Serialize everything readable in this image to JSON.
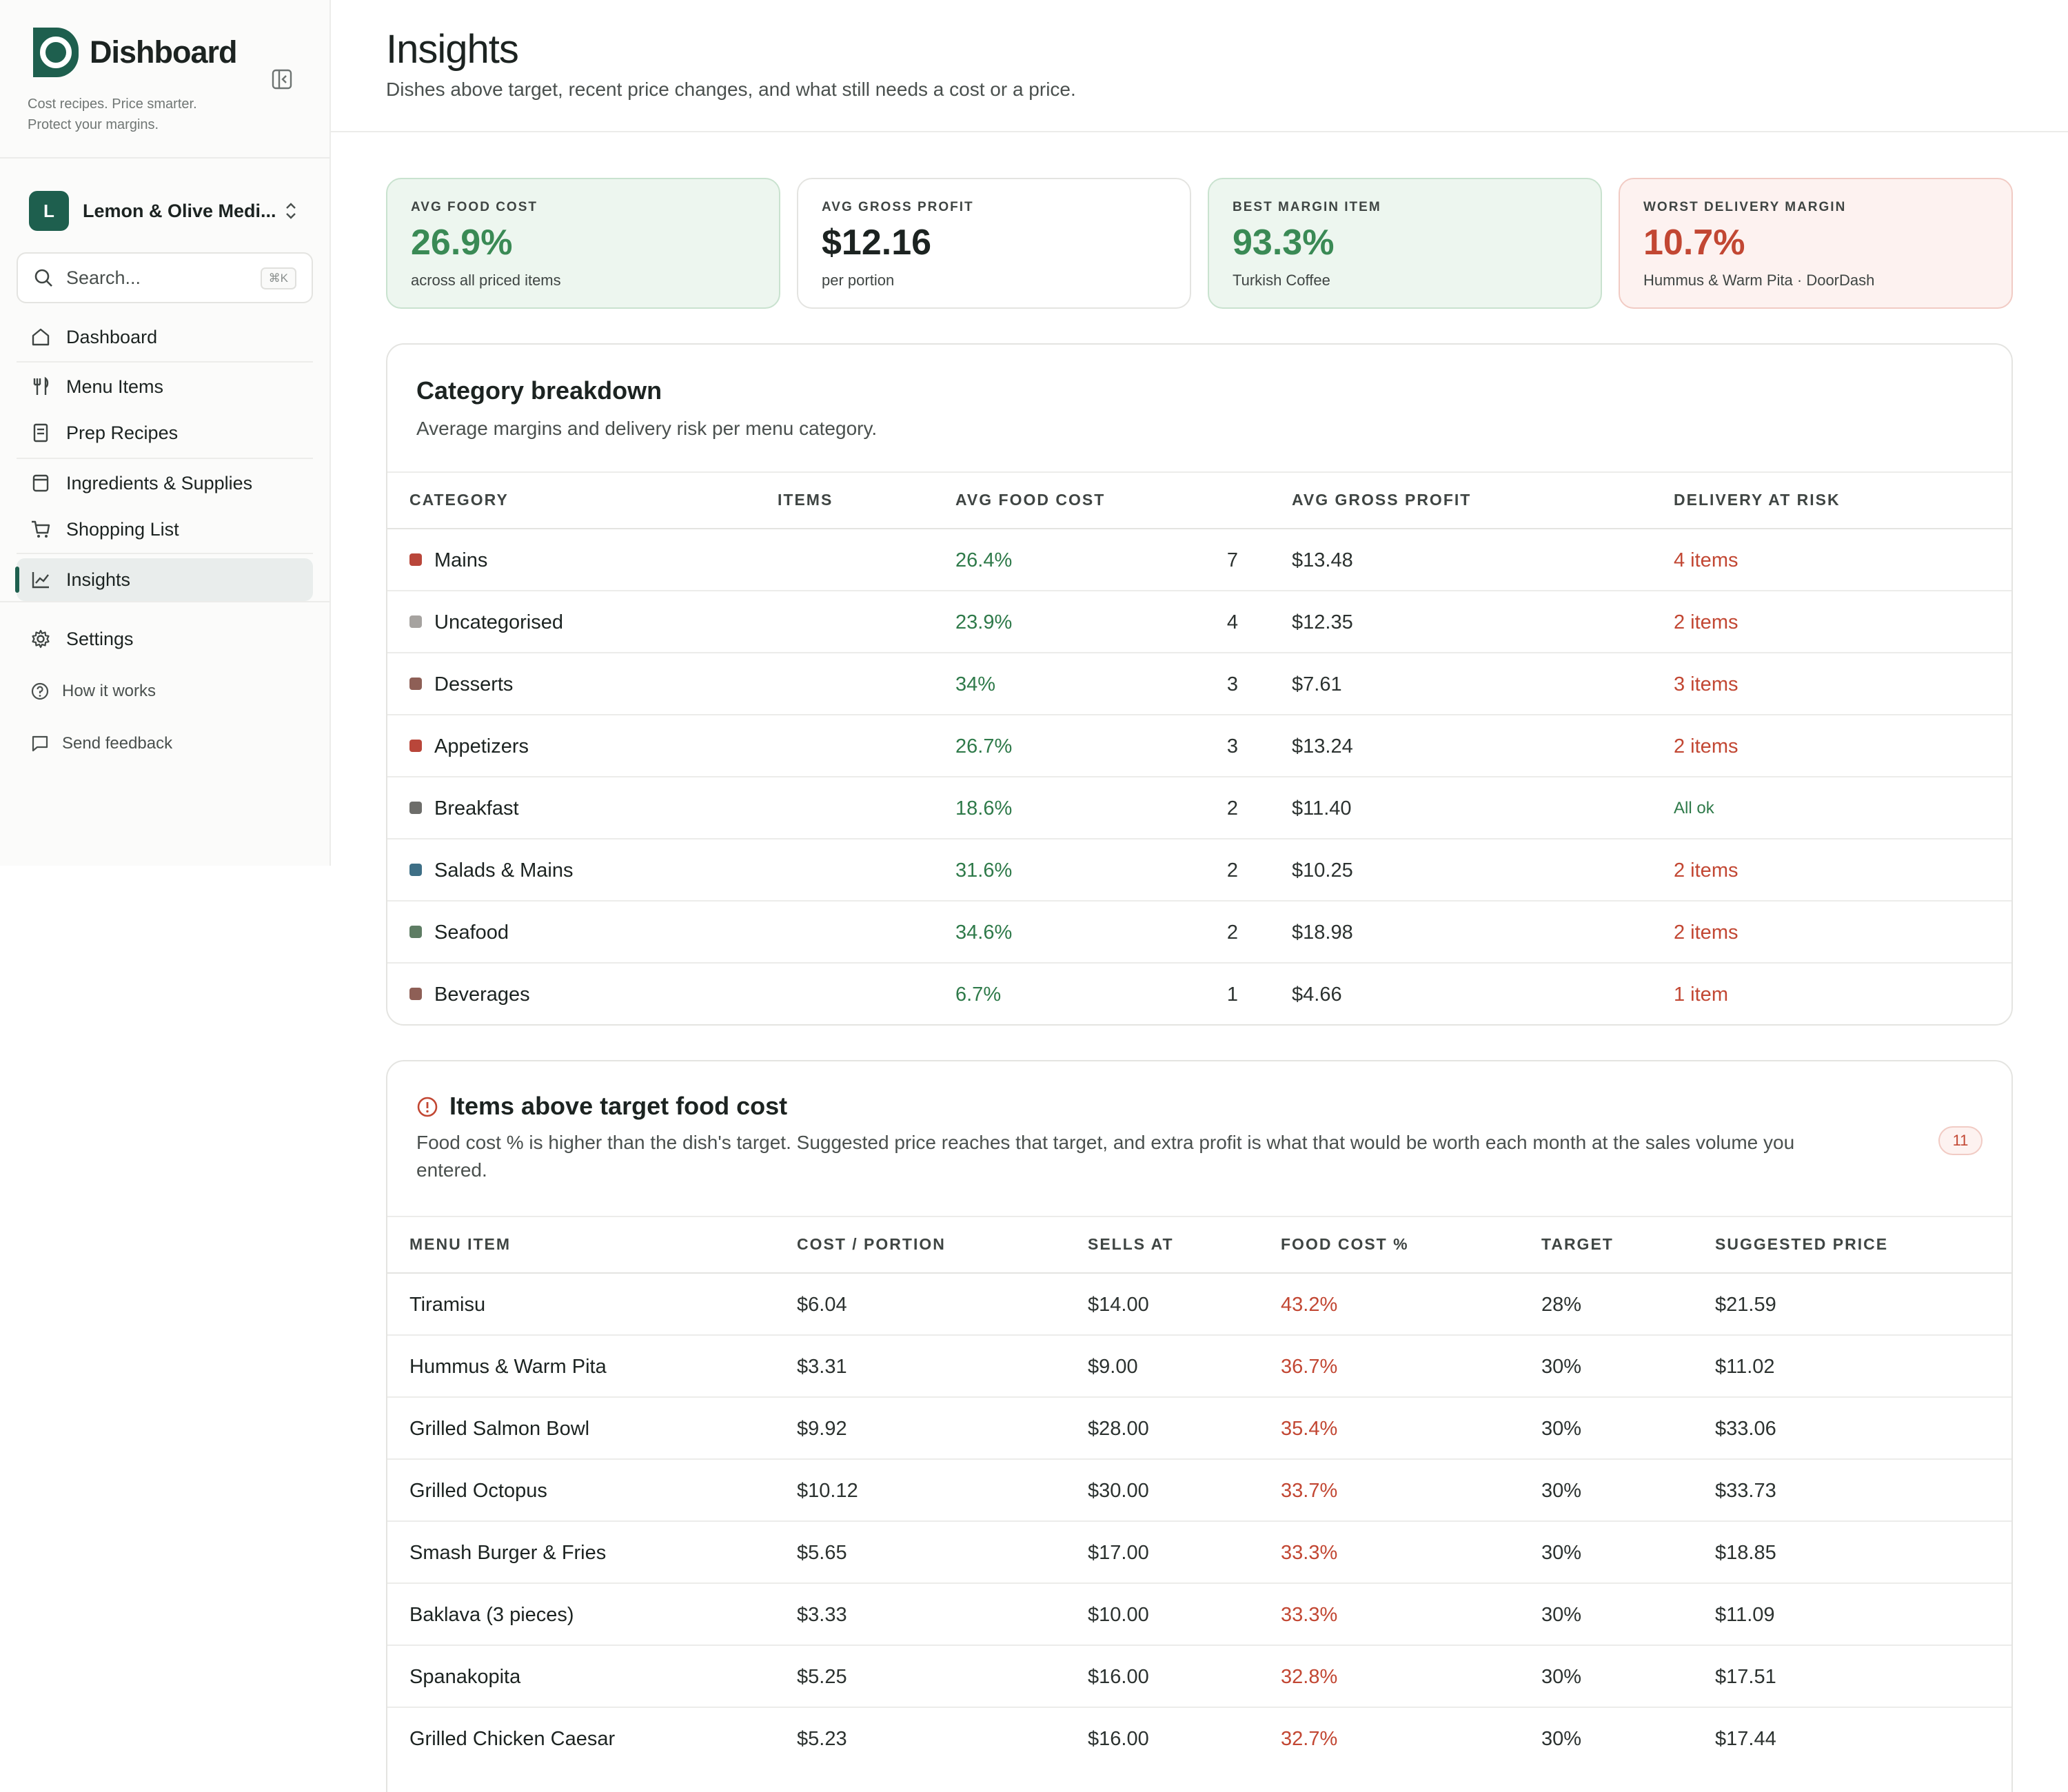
{
  "app": {
    "name": "Dishboard",
    "tagline_line1": "Cost recipes. Price smarter.",
    "tagline_line2": "Protect your margins.",
    "brand_color": "#1e5f4e"
  },
  "org": {
    "initial": "L",
    "name": "Lemon & Olive Medi..."
  },
  "search": {
    "placeholder": "Search...",
    "shortcut": "⌘K"
  },
  "nav": {
    "dashboard": "Dashboard",
    "menu_items": "Menu Items",
    "prep_recipes": "Prep Recipes",
    "ingredients": "Ingredients & Supplies",
    "shopping_list": "Shopping List",
    "insights": "Insights",
    "settings": "Settings",
    "how_it_works": "How it works",
    "send_feedback": "Send feedback"
  },
  "page": {
    "title": "Insights",
    "subtitle": "Dishes above target, recent price changes, and what still needs a cost or a price."
  },
  "kpis": [
    {
      "label": "AVG FOOD COST",
      "value": "26.9%",
      "note": "across all priced items",
      "tone": "green"
    },
    {
      "label": "AVG GROSS PROFIT",
      "value": "$12.16",
      "note": "per portion",
      "tone": "neutral"
    },
    {
      "label": "BEST MARGIN ITEM",
      "value": "93.3%",
      "note": "Turkish Coffee",
      "tone": "green"
    },
    {
      "label": "WORST DELIVERY MARGIN",
      "value": "10.7%",
      "note": "Hummus & Warm Pita · DoorDash",
      "tone": "red"
    }
  ],
  "category": {
    "title": "Category breakdown",
    "subtitle": "Average margins and delivery risk per menu category.",
    "headers": [
      "CATEGORY",
      "ITEMS",
      "AVG FOOD COST",
      "AVG GROSS PROFIT",
      "DELIVERY AT RISK"
    ],
    "rows": [
      {
        "name": "Mains",
        "color": "#b9463a",
        "items": "7",
        "food_cost": "26.4%",
        "gross_profit": "$13.48",
        "risk": "4 items",
        "risk_ok": false
      },
      {
        "name": "Uncategorised",
        "color": "#a6a3a0",
        "items": "4",
        "food_cost": "23.9%",
        "gross_profit": "$12.35",
        "risk": "2 items",
        "risk_ok": false
      },
      {
        "name": "Desserts",
        "color": "#8e5f56",
        "items": "3",
        "food_cost": "34%",
        "gross_profit": "$7.61",
        "risk": "3 items",
        "risk_ok": false
      },
      {
        "name": "Appetizers",
        "color": "#b9463a",
        "items": "3",
        "food_cost": "26.7%",
        "gross_profit": "$13.24",
        "risk": "2 items",
        "risk_ok": false
      },
      {
        "name": "Breakfast",
        "color": "#6d6d6a",
        "items": "2",
        "food_cost": "18.6%",
        "gross_profit": "$11.40",
        "risk": "All ok",
        "risk_ok": true
      },
      {
        "name": "Salads & Mains",
        "color": "#3e6f86",
        "items": "2",
        "food_cost": "31.6%",
        "gross_profit": "$10.25",
        "risk": "2 items",
        "risk_ok": false
      },
      {
        "name": "Seafood",
        "color": "#5e7d64",
        "items": "2",
        "food_cost": "34.6%",
        "gross_profit": "$18.98",
        "risk": "2 items",
        "risk_ok": false
      },
      {
        "name": "Beverages",
        "color": "#8e5f56",
        "items": "1",
        "food_cost": "6.7%",
        "gross_profit": "$4.66",
        "risk": "1 item",
        "risk_ok": false
      }
    ]
  },
  "above_target": {
    "title": "Items above target food cost",
    "subtitle_line1": "Food cost % is higher than the dish's target. Suggested price reaches that target, and extra profit is what that would be worth each month at the sales volume you",
    "subtitle_line2": "entered.",
    "count": "11",
    "headers": [
      "MENU ITEM",
      "COST / PORTION",
      "SELLS AT",
      "FOOD COST %",
      "TARGET",
      "SUGGESTED PRICE"
    ],
    "rows": [
      {
        "name": "Tiramisu",
        "cost": "$6.04",
        "sells": "$14.00",
        "food_cost": "43.2%",
        "target": "28%",
        "suggested": "$21.59"
      },
      {
        "name": "Hummus & Warm Pita",
        "cost": "$3.31",
        "sells": "$9.00",
        "food_cost": "36.7%",
        "target": "30%",
        "suggested": "$11.02"
      },
      {
        "name": "Grilled Salmon Bowl",
        "cost": "$9.92",
        "sells": "$28.00",
        "food_cost": "35.4%",
        "target": "30%",
        "suggested": "$33.06"
      },
      {
        "name": "Grilled Octopus",
        "cost": "$10.12",
        "sells": "$30.00",
        "food_cost": "33.7%",
        "target": "30%",
        "suggested": "$33.73"
      },
      {
        "name": "Smash Burger & Fries",
        "cost": "$5.65",
        "sells": "$17.00",
        "food_cost": "33.3%",
        "target": "30%",
        "suggested": "$18.85"
      },
      {
        "name": "Baklava (3 pieces)",
        "cost": "$3.33",
        "sells": "$10.00",
        "food_cost": "33.3%",
        "target": "30%",
        "suggested": "$11.09"
      },
      {
        "name": "Spanakopita",
        "cost": "$5.25",
        "sells": "$16.00",
        "food_cost": "32.8%",
        "target": "30%",
        "suggested": "$17.51"
      },
      {
        "name": "Grilled Chicken Caesar",
        "cost": "$5.23",
        "sells": "$16.00",
        "food_cost": "32.7%",
        "target": "30%",
        "suggested": "$17.44"
      }
    ]
  }
}
